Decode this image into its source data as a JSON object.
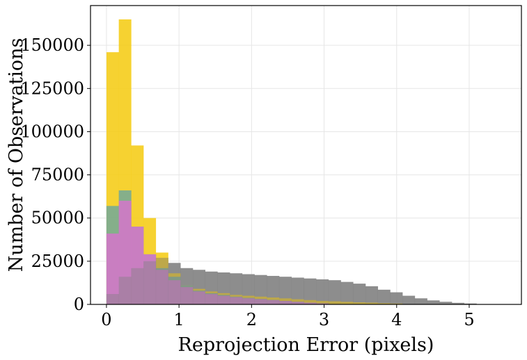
{
  "chart_data": {
    "type": "histogram",
    "title": "",
    "xlabel": "Reprojection Error (pixels)",
    "ylabel": "Number of Observations",
    "xlim": [
      -0.22,
      5.72
    ],
    "ylim": [
      0,
      173000
    ],
    "x_ticks": [
      0,
      1,
      2,
      3,
      4,
      5
    ],
    "y_ticks": [
      0,
      25000,
      50000,
      75000,
      100000,
      125000,
      150000
    ],
    "grid": true,
    "legend": "none",
    "bin_width": 0.17,
    "series": [
      {
        "name": "series-gray",
        "color": "#808080",
        "opacity": 0.82,
        "bin_start": [
          0.0,
          0.17,
          0.34,
          0.51,
          0.68,
          0.85,
          1.02,
          1.19,
          1.36,
          1.53,
          1.7,
          1.87,
          2.04,
          2.21,
          2.38,
          2.55,
          2.72,
          2.89,
          3.06,
          3.23,
          3.4,
          3.57,
          3.74,
          3.91,
          4.08,
          4.25,
          4.42,
          4.59,
          4.76,
          4.93,
          5.1
        ],
        "values": [
          6000,
          16000,
          21000,
          25000,
          27000,
          24000,
          21000,
          20000,
          19000,
          18500,
          18000,
          17500,
          17000,
          16500,
          16000,
          15500,
          15000,
          14500,
          14000,
          13000,
          12000,
          10500,
          8500,
          7000,
          5000,
          3500,
          2300,
          1500,
          900,
          500,
          200
        ]
      },
      {
        "name": "series-yellow",
        "color": "#f5cc14",
        "opacity": 0.88,
        "bin_start": [
          0.0,
          0.17,
          0.34,
          0.51,
          0.68,
          0.85,
          1.02,
          1.19,
          1.36,
          1.53,
          1.7,
          1.87,
          2.04,
          2.21,
          2.38,
          2.55,
          2.72,
          2.89,
          3.06,
          3.23,
          3.4,
          3.57,
          3.74,
          3.91
        ],
        "values": [
          146000,
          165000,
          92000,
          50000,
          30000,
          18000,
          11000,
          9000,
          7500,
          6500,
          5500,
          5000,
          4500,
          4000,
          3500,
          3000,
          2500,
          2000,
          1800,
          1500,
          1200,
          1000,
          700,
          500
        ]
      },
      {
        "name": "series-teal",
        "color": "#5fa3a8",
        "opacity": 0.75,
        "bin_start": [
          0.0,
          0.17,
          0.34,
          0.51,
          0.68,
          0.85,
          1.02,
          1.19,
          1.36,
          1.53,
          1.7,
          1.87,
          2.04,
          2.21,
          2.38,
          2.55,
          2.72,
          2.89
        ],
        "values": [
          57000,
          66000,
          45000,
          29000,
          21000,
          16000,
          11000,
          8000,
          6500,
          5500,
          4500,
          3800,
          3200,
          2600,
          2000,
          1500,
          1000,
          600
        ]
      },
      {
        "name": "series-magenta",
        "color": "#cf79c6",
        "opacity": 0.92,
        "bin_start": [
          0.0,
          0.17,
          0.34,
          0.51,
          0.68,
          0.85,
          1.02,
          1.19,
          1.36,
          1.53,
          1.7,
          1.87,
          2.04,
          2.21,
          2.38,
          2.55,
          2.72,
          2.89
        ],
        "values": [
          41000,
          60000,
          45000,
          29000,
          20000,
          14000,
          10000,
          7500,
          6000,
          5000,
          4200,
          3500,
          3000,
          2500,
          2000,
          1500,
          1000,
          600
        ]
      },
      {
        "name": "series-gray-overlay",
        "color": "#808080",
        "opacity": 0.42,
        "bin_start": [
          0.0,
          0.17,
          0.34,
          0.51,
          0.68,
          0.85,
          1.02,
          1.19,
          1.36,
          1.53,
          1.7,
          1.87,
          2.04,
          2.21,
          2.38,
          2.55,
          2.72,
          2.89,
          3.06,
          3.23,
          3.4,
          3.57,
          3.74,
          3.91,
          4.08,
          4.25,
          4.42,
          4.59,
          4.76,
          4.93,
          5.1
        ],
        "values": [
          6000,
          16000,
          21000,
          25000,
          27000,
          24000,
          21000,
          20000,
          19000,
          18500,
          18000,
          17500,
          17000,
          16500,
          16000,
          15500,
          15000,
          14500,
          14000,
          13000,
          12000,
          10500,
          8500,
          7000,
          5000,
          3500,
          2300,
          1500,
          900,
          500,
          200
        ]
      }
    ]
  }
}
